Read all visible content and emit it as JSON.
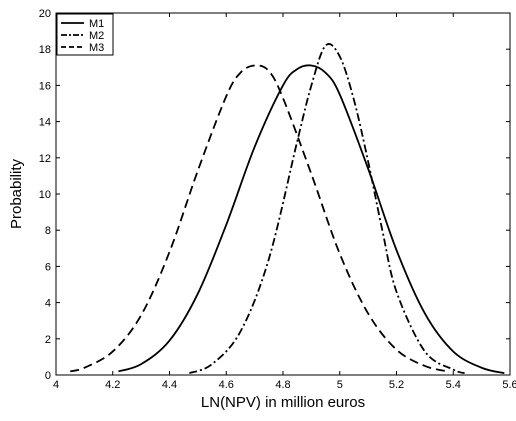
{
  "chart_data": {
    "type": "line",
    "title": "",
    "xlabel": "LN(NPV) in million euros",
    "ylabel": "Probability",
    "xlim": [
      4,
      5.6
    ],
    "ylim": [
      0,
      20
    ],
    "xticks": [
      "4",
      "4.2",
      "4.4",
      "4.6",
      "4.8",
      "5",
      "5.2",
      "5.4",
      "5.6"
    ],
    "yticks": [
      "0",
      "2",
      "4",
      "6",
      "8",
      "10",
      "12",
      "14",
      "16",
      "18",
      "20"
    ],
    "grid": false,
    "legend_position": "top-left",
    "series": [
      {
        "name": "M1",
        "style": "solid",
        "x": [
          4.22,
          4.3,
          4.4,
          4.5,
          4.6,
          4.7,
          4.8,
          4.85,
          4.9,
          4.95,
          5.0,
          5.1,
          5.2,
          5.3,
          5.4,
          5.5,
          5.58
        ],
        "y": [
          0.2,
          0.6,
          1.9,
          4.5,
          8.3,
          12.6,
          16.0,
          16.9,
          17.1,
          16.7,
          15.5,
          11.4,
          6.9,
          3.4,
          1.3,
          0.4,
          0.1
        ]
      },
      {
        "name": "M2",
        "style": "dash-dot",
        "x": [
          4.47,
          4.55,
          4.65,
          4.75,
          4.85,
          4.9,
          4.95,
          5.0,
          5.05,
          5.1,
          5.15,
          5.2,
          5.3,
          5.4,
          5.44
        ],
        "y": [
          0.1,
          0.6,
          2.4,
          6.4,
          12.9,
          16.0,
          18.2,
          17.6,
          15.2,
          11.8,
          8.0,
          4.6,
          1.3,
          0.3,
          0.1
        ]
      },
      {
        "name": "M3",
        "style": "dash",
        "x": [
          4.05,
          4.1,
          4.2,
          4.3,
          4.4,
          4.5,
          4.6,
          4.65,
          4.7,
          4.75,
          4.8,
          4.9,
          5.0,
          5.1,
          5.2,
          5.3,
          5.38
        ],
        "y": [
          0.2,
          0.4,
          1.3,
          3.3,
          6.8,
          11.3,
          15.4,
          16.7,
          17.1,
          16.8,
          15.3,
          11.1,
          6.7,
          3.4,
          1.4,
          0.5,
          0.2
        ]
      }
    ]
  }
}
